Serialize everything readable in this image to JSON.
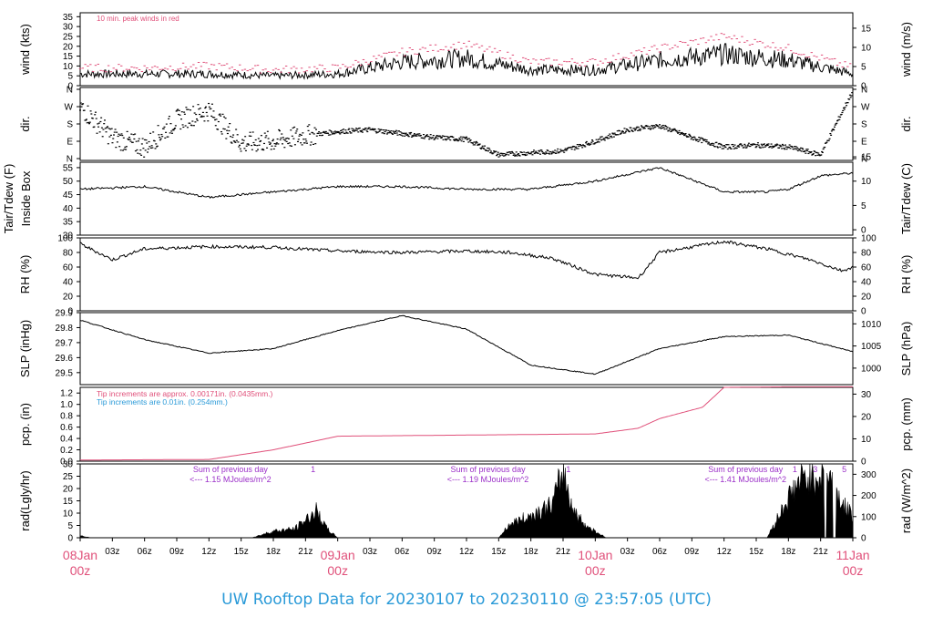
{
  "chart_data": [
    {
      "type": "line",
      "panel": "wind",
      "ylabel_left": "wind (kts)",
      "ylabel_right": "wind (m/s)",
      "ylim": [
        0,
        37
      ],
      "yticks_left": [
        "0",
        "5",
        "10",
        "15",
        "20",
        "25",
        "30",
        "35"
      ],
      "yticks_right": [
        "0",
        "5",
        "10",
        "15"
      ],
      "annotation": "10 min. peak winds in red",
      "series": [
        {
          "name": "wind speed",
          "color": "#000000",
          "x": [
            0,
            6,
            12,
            18,
            24,
            30,
            36,
            42,
            48,
            54,
            60,
            66,
            72
          ],
          "values": [
            6,
            6,
            6,
            5,
            6,
            12,
            14,
            8,
            8,
            13,
            16,
            13,
            6
          ]
        },
        {
          "name": "10 min. peak winds",
          "color": "#e0507a",
          "x": [
            0,
            6,
            12,
            18,
            24,
            30,
            36,
            42,
            48,
            54,
            60,
            66,
            72
          ],
          "values": [
            9,
            9,
            10,
            8,
            9,
            17,
            21,
            12,
            12,
            19,
            25,
            19,
            9
          ]
        }
      ]
    },
    {
      "type": "scatter",
      "panel": "dir",
      "ylabel_left": "dir.",
      "ylabel_right": "dir.",
      "yticks_left": [
        "N",
        "E",
        "S",
        "W",
        "N"
      ],
      "yticks_right": [
        "N",
        "E",
        "S",
        "W",
        "N"
      ],
      "series": [
        {
          "name": "wind direction",
          "color": "#000000",
          "x": [
            0,
            3,
            6,
            9,
            12,
            15,
            18,
            21,
            24,
            27,
            30,
            33,
            36,
            39,
            42,
            45,
            48,
            51,
            54,
            57,
            60,
            63,
            66,
            69,
            72
          ],
          "values": [
            270,
            110,
            60,
            200,
            250,
            80,
            90,
            120,
            140,
            150,
            130,
            110,
            100,
            20,
            30,
            40,
            90,
            150,
            170,
            110,
            60,
            70,
            60,
            20,
            350
          ]
        }
      ]
    },
    {
      "type": "line",
      "panel": "temperature",
      "ylabel_left_lines": [
        "Tair/Tdew (F)",
        "Inside Box"
      ],
      "ylabel_right": "Tair/Tdew (C)",
      "ylim": [
        30,
        57
      ],
      "yticks_left": [
        "30",
        "35",
        "40",
        "45",
        "50",
        "55"
      ],
      "yticks_right": [
        "0",
        "5",
        "10",
        "15"
      ],
      "series": [
        {
          "name": "Tair",
          "color": "#000000",
          "x": [
            0,
            6,
            12,
            18,
            24,
            30,
            36,
            42,
            48,
            54,
            60,
            64,
            66,
            69,
            72
          ],
          "values": [
            47,
            48,
            44,
            46,
            48,
            48,
            47,
            47,
            50,
            55,
            46,
            46,
            47,
            52,
            53
          ]
        }
      ]
    },
    {
      "type": "line",
      "panel": "rh",
      "ylabel_left": "RH (%)",
      "ylabel_right": "RH (%)",
      "ylim": [
        0,
        100
      ],
      "yticks_left": [
        "0",
        "20",
        "40",
        "60",
        "80",
        "100"
      ],
      "yticks_right": [
        "0",
        "20",
        "40",
        "60",
        "80",
        "100"
      ],
      "series": [
        {
          "name": "RH",
          "color": "#000000",
          "x": [
            0,
            3,
            6,
            12,
            18,
            24,
            30,
            36,
            40,
            44,
            48,
            52,
            54,
            58,
            60,
            64,
            68,
            71,
            72
          ],
          "values": [
            92,
            70,
            85,
            88,
            87,
            82,
            80,
            82,
            80,
            72,
            50,
            45,
            80,
            90,
            95,
            85,
            70,
            55,
            60
          ]
        }
      ]
    },
    {
      "type": "line",
      "panel": "slp",
      "ylabel_left": "SLP (inHg)",
      "ylabel_right": "SLP (hPa)",
      "ylim": [
        29.42,
        29.9
      ],
      "yticks_left": [
        "29.5",
        "29.6",
        "29.7",
        "29.8",
        "29.9"
      ],
      "yticks_right": [
        "1000",
        "1005",
        "1010"
      ],
      "series": [
        {
          "name": "SLP",
          "color": "#000000",
          "x": [
            0,
            6,
            12,
            18,
            24,
            30,
            36,
            42,
            48,
            54,
            60,
            66,
            72
          ],
          "values": [
            29.85,
            29.72,
            29.63,
            29.66,
            29.78,
            29.88,
            29.79,
            29.55,
            29.49,
            29.66,
            29.74,
            29.75,
            29.64
          ]
        }
      ]
    },
    {
      "type": "line",
      "panel": "pcp",
      "ylabel_left": "pcp. (in)",
      "ylabel_right": "pcp. (mm)",
      "ylim": [
        0,
        1.3
      ],
      "yticks_left": [
        "0.0",
        "0.2",
        "0.4",
        "0.6",
        "0.8",
        "1.0",
        "1.2"
      ],
      "yticks_right": [
        "0",
        "10",
        "20",
        "30"
      ],
      "annotations": [
        {
          "text": "Tip increments are approx. 0.00171in. (0.0435mm.)",
          "color": "#e0507a"
        },
        {
          "text": "Tip increments are 0.01in. (0.254mm.)",
          "color": "#2a9ad8"
        }
      ],
      "series": [
        {
          "name": "precipitation",
          "color": "#e0507a",
          "x": [
            0,
            12,
            18,
            24,
            36,
            48,
            52,
            54,
            58,
            60,
            66,
            72
          ],
          "values": [
            0.02,
            0.03,
            0.2,
            0.44,
            0.46,
            0.48,
            0.58,
            0.75,
            0.95,
            1.3,
            1.31,
            1.31
          ]
        }
      ]
    },
    {
      "type": "area",
      "panel": "rad",
      "ylabel_left": "rad(Lgly/hr)",
      "ylabel_right": "rad (W/m^2)",
      "ylim": [
        0,
        30
      ],
      "yticks_left": [
        "0",
        "5",
        "10",
        "15",
        "20",
        "25",
        "30"
      ],
      "yticks_right": [
        "0",
        "100",
        "200",
        "300"
      ],
      "annotations": [
        {
          "lines": [
            "Sum of previous day",
            "<--- 1.15 MJoules/m^2"
          ],
          "color": "#9b30c8"
        },
        {
          "lines": [
            "Sum of previous day",
            "<--- 1.19 MJoules/m^2"
          ],
          "color": "#9b30c8"
        },
        {
          "lines": [
            "Sum of previous day",
            "<--- 1.41 MJoules/m^2"
          ],
          "color": "#9b30c8"
        }
      ],
      "markers": [
        {
          "x": 21.7,
          "label": "1"
        },
        {
          "x": 45.5,
          "label": "1"
        },
        {
          "x": 66.6,
          "label": "1"
        },
        {
          "x": 68.5,
          "label": "3"
        },
        {
          "x": 71.2,
          "label": "5"
        }
      ],
      "series": [
        {
          "name": "radiation",
          "color": "#000000",
          "x": [
            0,
            1,
            16,
            18,
            20,
            21,
            22,
            23,
            24,
            39,
            40,
            42,
            44,
            45,
            46,
            47,
            48,
            49,
            64,
            66,
            67,
            68,
            69,
            70,
            71,
            72
          ],
          "values": [
            1,
            0,
            0,
            3,
            4,
            8,
            12,
            4,
            0,
            0,
            6,
            10,
            15,
            30,
            12,
            6,
            3,
            0,
            0,
            18,
            25,
            28,
            28,
            27,
            15,
            10
          ]
        }
      ]
    }
  ],
  "time_axis": {
    "minor_ticks": [
      "03z",
      "06z",
      "09z",
      "12z",
      "15z",
      "18z",
      "21z"
    ],
    "major_ticks": [
      {
        "x": 0,
        "date": "08Jan",
        "time": "00z"
      },
      {
        "x": 24,
        "date": "09Jan",
        "time": "00z"
      },
      {
        "x": 48,
        "date": "10Jan",
        "time": "00z"
      },
      {
        "x": 72,
        "date": "11Jan",
        "time": "00z"
      }
    ]
  },
  "footer": {
    "title": "UW Rooftop Data for 20230107  to  20230110 @ 23:57:05  (UTC)"
  }
}
